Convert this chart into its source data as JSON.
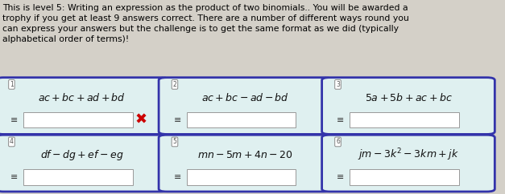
{
  "title_text": "This is level 5: Writing an expression as the product of two binomials.. You will be awarded a\ntrophy if you get at least 9 answers correct. There are a number of different ways round you\ncan express your answers but the challenge is to get the same format as we did (typically\nalphabetical order of terms)!",
  "bg_color": "#d4d0c8",
  "card_bg": "#dff0f0",
  "card_border": "#3333aa",
  "right_bar_color": "#7b3f8c",
  "input_bg": "#ffffff",
  "title_fontsize": 7.8,
  "cards": [
    {
      "num": "1",
      "expr": "$ac + bc + ad + bd$",
      "has_x": true
    },
    {
      "num": "2",
      "expr": "$ac + bc - ad - bd$",
      "has_x": false
    },
    {
      "num": "3",
      "expr": "$5a + 5b + ac + bc$",
      "has_x": false
    },
    {
      "num": "4",
      "expr": "$df - dg + ef - eg$",
      "has_x": false
    },
    {
      "num": "5",
      "expr": "$mn - 5m + 4n - 20$",
      "has_x": false
    },
    {
      "num": "6",
      "expr": "$jm - 3k^2 - 3km + jk$",
      "has_x": false
    }
  ],
  "x_color": "#cc0000"
}
